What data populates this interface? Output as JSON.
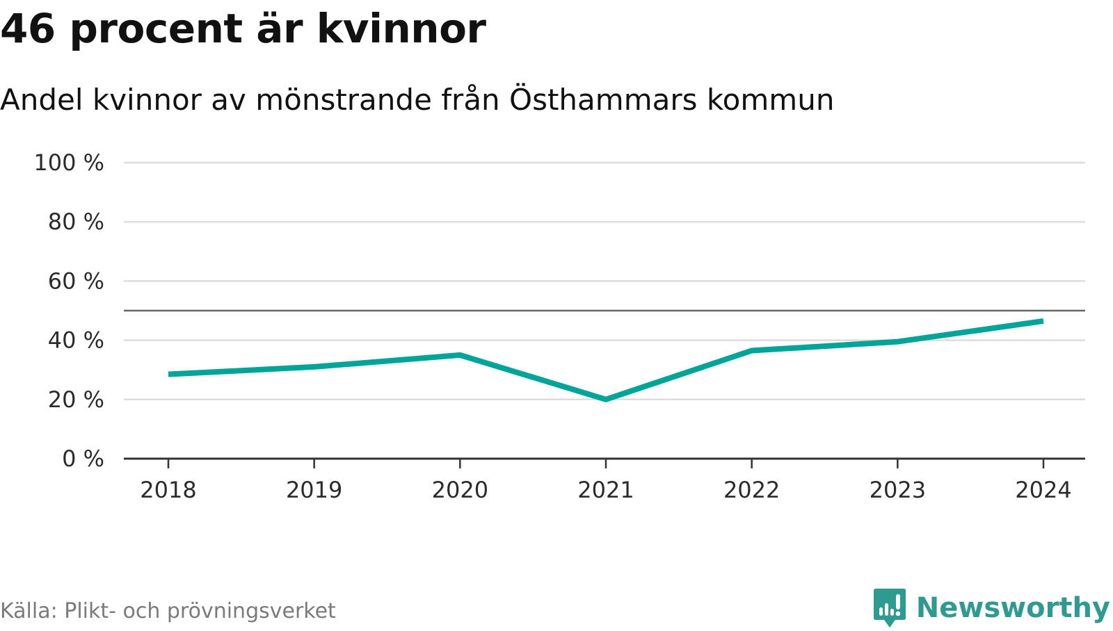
{
  "header": {
    "title": "46 procent är kvinnor",
    "subtitle": "Andel kvinnor av mönstrande från Östhammars kommun"
  },
  "footer": {
    "source": "Källa: Plikt- och prövningsverket",
    "brand": "Newsworthy",
    "brand_icon": "newsworthy-logo-icon"
  },
  "colors": {
    "series": "#00a499",
    "brand": "#2f9a8f",
    "grid": "#dddddd",
    "reference_line": "#666666",
    "axis": "#333333"
  },
  "chart_data": {
    "type": "line",
    "title": "46 procent är kvinnor",
    "subtitle": "Andel kvinnor av mönstrande från Östhammars kommun",
    "x": [
      "2018",
      "2019",
      "2020",
      "2021",
      "2022",
      "2023",
      "2024"
    ],
    "series": [
      {
        "values": [
          28.5,
          31,
          35,
          20,
          36.5,
          39.5,
          46.5
        ]
      }
    ],
    "ylim": [
      0,
      100
    ],
    "yticks": [
      0,
      20,
      40,
      60,
      80,
      100
    ],
    "ytick_labels": [
      "0 %",
      "20 %",
      "40 %",
      "60 %",
      "80 %",
      "100 %"
    ],
    "reference_line": 50,
    "grid": true,
    "legend": "none",
    "xlabel": "",
    "ylabel": ""
  }
}
